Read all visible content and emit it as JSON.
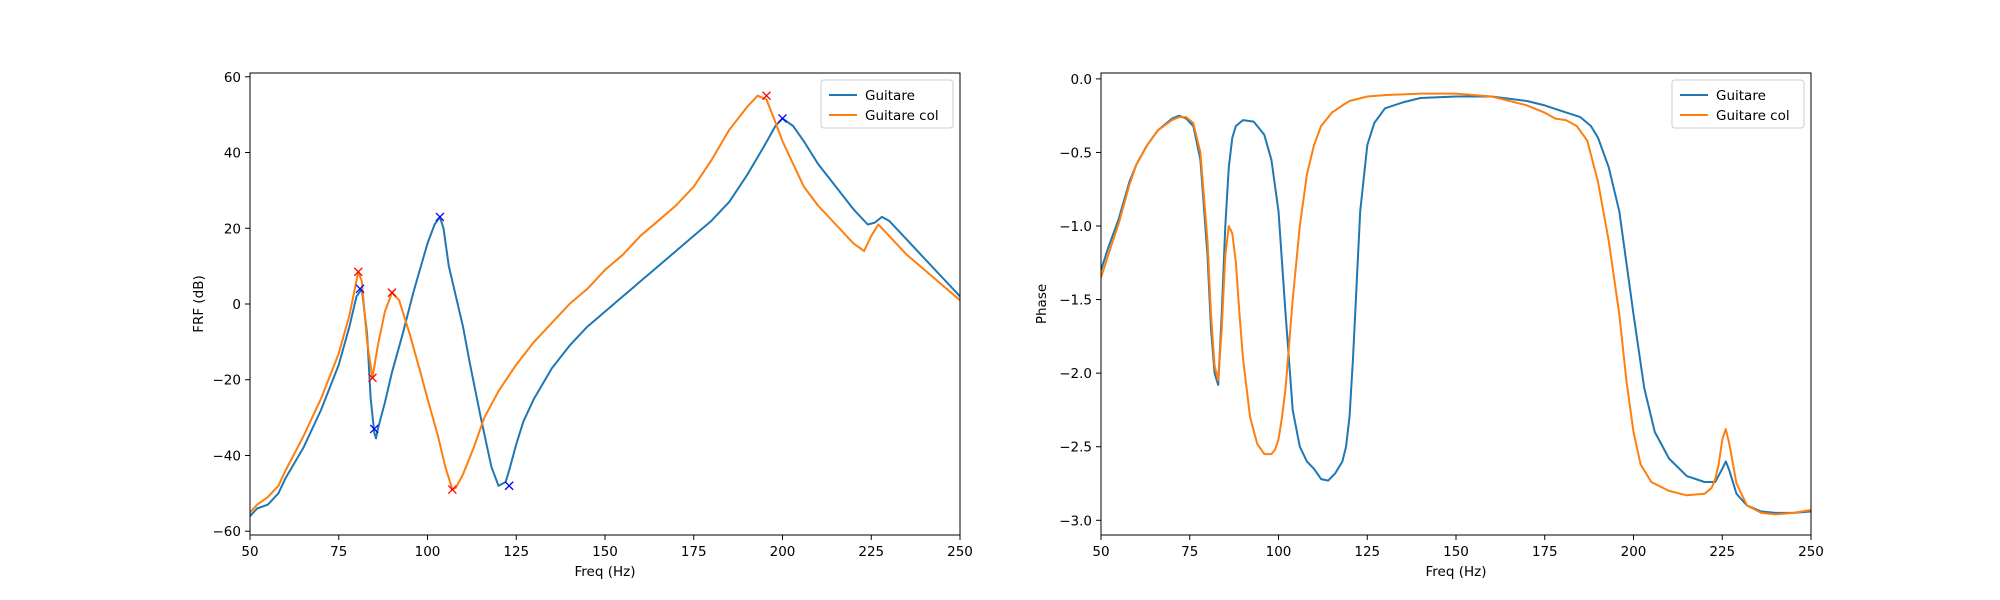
{
  "chart_data": [
    {
      "type": "line",
      "xlabel": "Freq (Hz)",
      "ylabel": "FRF (dB)",
      "xlim": [
        50,
        250
      ],
      "ylim": [
        -61,
        61
      ],
      "xticks": [
        50,
        75,
        100,
        125,
        150,
        175,
        200,
        225,
        250
      ],
      "yticks": [
        -60,
        -40,
        -20,
        0,
        20,
        40,
        60
      ],
      "legend_position": "top-right",
      "series": [
        {
          "name": "Guitare",
          "color": "#1f77b4",
          "x": [
            50,
            52,
            55,
            58,
            60,
            65,
            70,
            75,
            78,
            80,
            81.5,
            83,
            84,
            85,
            85.5,
            86,
            88,
            90,
            93,
            96,
            100,
            102,
            103.5,
            104.5,
            106,
            108,
            110,
            112,
            115,
            118,
            120,
            122,
            123,
            125,
            127,
            130,
            135,
            140,
            145,
            150,
            155,
            160,
            165,
            170,
            175,
            180,
            185,
            190,
            195,
            198,
            200,
            203,
            206,
            210,
            215,
            220,
            224,
            226,
            228,
            230,
            235,
            240,
            245,
            250
          ],
          "y": [
            -56,
            -54,
            -53,
            -50,
            -46,
            -38,
            -28,
            -16,
            -6,
            2,
            4,
            -8,
            -25,
            -34,
            -35.5,
            -33,
            -26,
            -18,
            -8,
            3,
            16,
            21,
            23,
            20,
            10,
            2,
            -6,
            -16,
            -30,
            -43,
            -48,
            -47,
            -44,
            -37,
            -31,
            -25,
            -17,
            -11,
            -6,
            -2,
            2,
            6,
            10,
            14,
            18,
            22,
            27,
            34,
            42,
            47,
            49,
            47,
            43,
            37,
            31,
            25,
            21,
            21.5,
            23,
            22,
            17,
            12,
            7,
            2
          ]
        },
        {
          "name": "Guitare col",
          "color": "#ff7f0e",
          "x": [
            50,
            52,
            55,
            58,
            60,
            65,
            70,
            75,
            78,
            80.5,
            81.5,
            83,
            84.5,
            86,
            88,
            90,
            92,
            95,
            98,
            100,
            103,
            105,
            107,
            108,
            110,
            113,
            116,
            120,
            125,
            130,
            135,
            140,
            145,
            150,
            155,
            160,
            165,
            170,
            175,
            180,
            185,
            190,
            193,
            195.5,
            198,
            200,
            203,
            206,
            210,
            215,
            220,
            223,
            225,
            227,
            230,
            235,
            240,
            245,
            250
          ],
          "y": [
            -55,
            -53,
            -51,
            -48,
            -44,
            -35,
            -25,
            -13,
            -3,
            8.5,
            6,
            -10,
            -19.5,
            -11,
            -2,
            3,
            1,
            -8,
            -18,
            -25,
            -35,
            -43,
            -49,
            -48.5,
            -45,
            -38,
            -30,
            -23,
            -16,
            -10,
            -5,
            0,
            4,
            9,
            13,
            18,
            22,
            26,
            31,
            38,
            46,
            52,
            55,
            54,
            48,
            43,
            37,
            31,
            26,
            21,
            16,
            14,
            18,
            21,
            18,
            13,
            9,
            5,
            1
          ]
        }
      ],
      "markers": [
        {
          "x": 80.5,
          "y": 8.5,
          "color": "red"
        },
        {
          "x": 84.5,
          "y": -19.5,
          "color": "red"
        },
        {
          "x": 90,
          "y": 3,
          "color": "red"
        },
        {
          "x": 107,
          "y": -49,
          "color": "red"
        },
        {
          "x": 195.5,
          "y": 55,
          "color": "red"
        },
        {
          "x": 81,
          "y": 4,
          "color": "blue"
        },
        {
          "x": 85,
          "y": -33,
          "color": "blue"
        },
        {
          "x": 103.5,
          "y": 23,
          "color": "blue"
        },
        {
          "x": 123,
          "y": -48,
          "color": "blue"
        },
        {
          "x": 200,
          "y": 49,
          "color": "blue"
        }
      ]
    },
    {
      "type": "line",
      "xlabel": "Freq (Hz)",
      "ylabel": "Phase",
      "xlim": [
        50,
        250
      ],
      "ylim": [
        -3.1,
        0.04
      ],
      "xticks": [
        50,
        75,
        100,
        125,
        150,
        175,
        200,
        225,
        250
      ],
      "yticks": [
        0.0,
        -0.5,
        -1.0,
        -1.5,
        -2.0,
        -2.5,
        -3.0
      ],
      "ytick_labels": [
        "0.0",
        "−0.5",
        "−1.0",
        "−1.5",
        "−2.0",
        "−2.5",
        "−3.0"
      ],
      "legend_position": "top-right",
      "series": [
        {
          "name": "Guitare",
          "color": "#1f77b4",
          "x": [
            50,
            52,
            55,
            58,
            60,
            63,
            66,
            70,
            72,
            74,
            76,
            78,
            80,
            81,
            82,
            83,
            84,
            85,
            86,
            87,
            88,
            90,
            93,
            96,
            98,
            100,
            102,
            104,
            106,
            108,
            110,
            112,
            114,
            116,
            118,
            119,
            120,
            121,
            122,
            123,
            125,
            127,
            130,
            135,
            140,
            150,
            160,
            170,
            175,
            180,
            185,
            188,
            190,
            193,
            196,
            200,
            203,
            206,
            210,
            215,
            220,
            223,
            225,
            226,
            227,
            229,
            232,
            236,
            240,
            245,
            250
          ],
          "y": [
            -1.3,
            -1.15,
            -0.95,
            -0.7,
            -0.58,
            -0.45,
            -0.35,
            -0.27,
            -0.25,
            -0.27,
            -0.32,
            -0.55,
            -1.2,
            -1.7,
            -2.0,
            -2.08,
            -1.6,
            -1.0,
            -0.6,
            -0.4,
            -0.32,
            -0.28,
            -0.29,
            -0.38,
            -0.55,
            -0.9,
            -1.6,
            -2.25,
            -2.5,
            -2.6,
            -2.65,
            -2.72,
            -2.73,
            -2.68,
            -2.6,
            -2.5,
            -2.3,
            -1.9,
            -1.4,
            -0.9,
            -0.45,
            -0.3,
            -0.2,
            -0.16,
            -0.13,
            -0.12,
            -0.12,
            -0.15,
            -0.18,
            -0.22,
            -0.26,
            -0.32,
            -0.4,
            -0.6,
            -0.9,
            -1.6,
            -2.1,
            -2.4,
            -2.58,
            -2.7,
            -2.74,
            -2.74,
            -2.65,
            -2.6,
            -2.66,
            -2.82,
            -2.9,
            -2.94,
            -2.95,
            -2.95,
            -2.94
          ]
        },
        {
          "name": "Guitare col",
          "color": "#ff7f0e",
          "x": [
            50,
            52,
            55,
            58,
            60,
            63,
            66,
            70,
            72,
            74,
            76,
            78,
            80,
            81,
            82,
            83,
            84,
            85,
            86,
            87,
            88,
            89,
            90,
            92,
            94,
            96,
            98,
            99,
            100,
            101,
            102,
            104,
            106,
            108,
            110,
            112,
            115,
            118,
            120,
            125,
            130,
            140,
            150,
            160,
            170,
            175,
            178,
            181,
            184,
            187,
            190,
            193,
            196,
            198,
            200,
            202,
            205,
            210,
            215,
            220,
            222,
            223,
            224,
            225,
            226,
            227,
            229,
            232,
            236,
            240,
            245,
            250
          ],
          "y": [
            -1.35,
            -1.2,
            -0.98,
            -0.72,
            -0.58,
            -0.45,
            -0.35,
            -0.28,
            -0.26,
            -0.26,
            -0.3,
            -0.5,
            -1.1,
            -1.6,
            -1.95,
            -2.05,
            -1.7,
            -1.2,
            -1.0,
            -1.05,
            -1.25,
            -1.6,
            -1.9,
            -2.3,
            -2.48,
            -2.55,
            -2.55,
            -2.52,
            -2.45,
            -2.3,
            -2.1,
            -1.5,
            -1.0,
            -0.65,
            -0.45,
            -0.32,
            -0.23,
            -0.18,
            -0.15,
            -0.12,
            -0.11,
            -0.1,
            -0.1,
            -0.12,
            -0.18,
            -0.23,
            -0.27,
            -0.28,
            -0.32,
            -0.42,
            -0.7,
            -1.1,
            -1.6,
            -2.05,
            -2.4,
            -2.62,
            -2.74,
            -2.8,
            -2.83,
            -2.82,
            -2.78,
            -2.72,
            -2.62,
            -2.45,
            -2.38,
            -2.48,
            -2.75,
            -2.9,
            -2.95,
            -2.96,
            -2.95,
            -2.93
          ]
        }
      ],
      "markers": []
    }
  ]
}
